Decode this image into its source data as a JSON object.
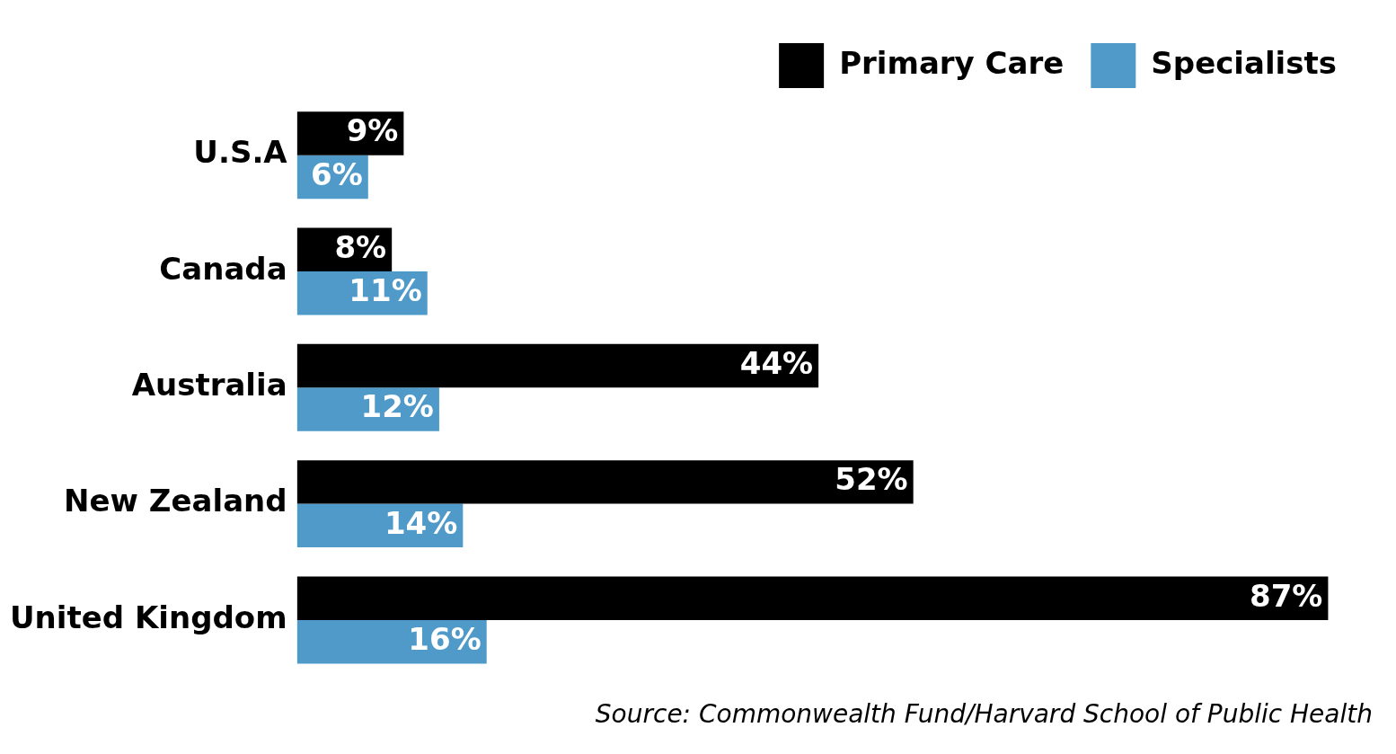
{
  "chart_data": {
    "type": "bar",
    "orientation": "horizontal",
    "categories": [
      "U.S.A",
      "Canada",
      "Australia",
      "New Zealand",
      "United Kingdom"
    ],
    "series": [
      {
        "name": "Primary Care",
        "color": "#000000",
        "values": [
          9,
          8,
          44,
          52,
          87
        ],
        "value_labels": [
          "9%",
          "8%",
          "44%",
          "52%",
          "87%"
        ]
      },
      {
        "name": "Specialists",
        "color": "#4f9ac9",
        "values": [
          6,
          11,
          12,
          14,
          16
        ],
        "value_labels": [
          "6%",
          "11%",
          "12%",
          "14%",
          "16%"
        ]
      }
    ],
    "legend": "top right",
    "grid": false,
    "tick_labels": "y",
    "annotations": [
      "Source: Commonwealth Fund/Harvard School of Public Health"
    ]
  }
}
